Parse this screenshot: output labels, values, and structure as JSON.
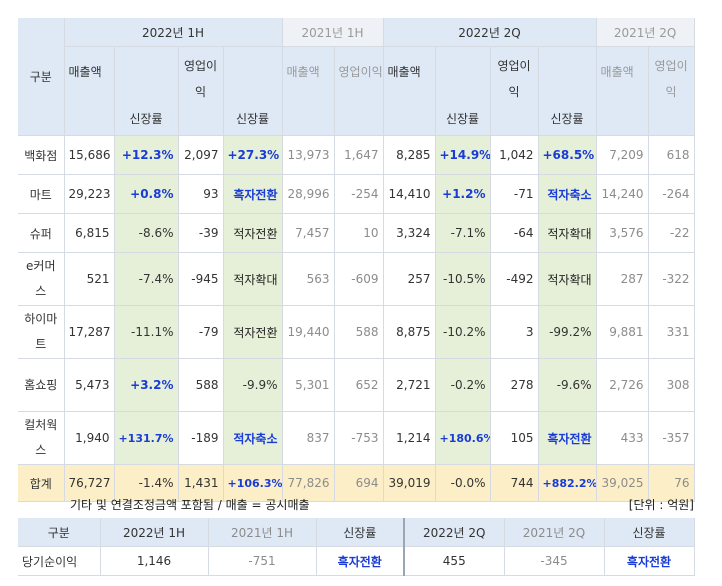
{
  "header": {
    "gubun": "구분",
    "p1": "2022년 1H",
    "p2": "2021년 1H",
    "p3": "2022년 2Q",
    "p4": "2021년 2Q",
    "sales": "매출액",
    "op": "영업이익",
    "growth": "신장률"
  },
  "rows": [
    {
      "label": "백화점",
      "c": [
        "15,686",
        "+12.3%",
        "2,097",
        "+27.3%",
        "13,973",
        "1,647",
        "8,285",
        "+14.9%",
        "1,042",
        "+68.5%",
        "7,209",
        "618"
      ]
    },
    {
      "label": "마트",
      "c": [
        "29,223",
        "+0.8%",
        "93",
        "흑자전환",
        "28,996",
        "-254",
        "14,410",
        "+1.2%",
        "-71",
        "적자축소",
        "14,240",
        "-264"
      ]
    },
    {
      "label": "슈퍼",
      "c": [
        "6,815",
        "-8.6%",
        "-39",
        "적자전환",
        "7,457",
        "10",
        "3,324",
        "-7.1%",
        "-64",
        "적자확대",
        "3,576",
        "-22"
      ]
    },
    {
      "label": "e커머스",
      "c": [
        "521",
        "-7.4%",
        "-945",
        "적자확대",
        "563",
        "-609",
        "257",
        "-10.5%",
        "-492",
        "적자확대",
        "287",
        "-322"
      ]
    },
    {
      "label": "하이마트",
      "c": [
        "17,287",
        "-11.1%",
        "-79",
        "적자전환",
        "19,440",
        "588",
        "8,875",
        "-10.2%",
        "3",
        "-99.2%",
        "9,881",
        "331"
      ]
    },
    {
      "label": "홈쇼핑",
      "c": [
        "5,473",
        "+3.2%",
        "588",
        "-9.9%",
        "5,301",
        "652",
        "2,721",
        "-0.2%",
        "278",
        "-9.6%",
        "2,726",
        "308"
      ]
    },
    {
      "label": "컬처웍스",
      "c": [
        "1,940",
        "+131.7%",
        "-189",
        "적자축소",
        "837",
        "-753",
        "1,214",
        "+180.6%",
        "105",
        "흑자전환",
        "433",
        "-357"
      ]
    }
  ],
  "total": {
    "label": "합계",
    "c": [
      "76,727",
      "-1.4%",
      "1,431",
      "+106.3%",
      "77,826",
      "694",
      "39,019",
      "-0.0%",
      "744",
      "+882.2%",
      "39,025",
      "76"
    ]
  },
  "note": "기타 및 연결조정금액 포함됨 / 매출 = 공시매출",
  "unit": "[단위 : 억원]",
  "net": {
    "headers": [
      "구분",
      "2022년 1H",
      "2021년 1H",
      "신장률",
      "2022년 2Q",
      "2021년 2Q",
      "신장률"
    ],
    "row": [
      "당기순이익",
      "1,146",
      "-751",
      "흑자전환",
      "455",
      "-345",
      "흑자전환"
    ]
  }
}
